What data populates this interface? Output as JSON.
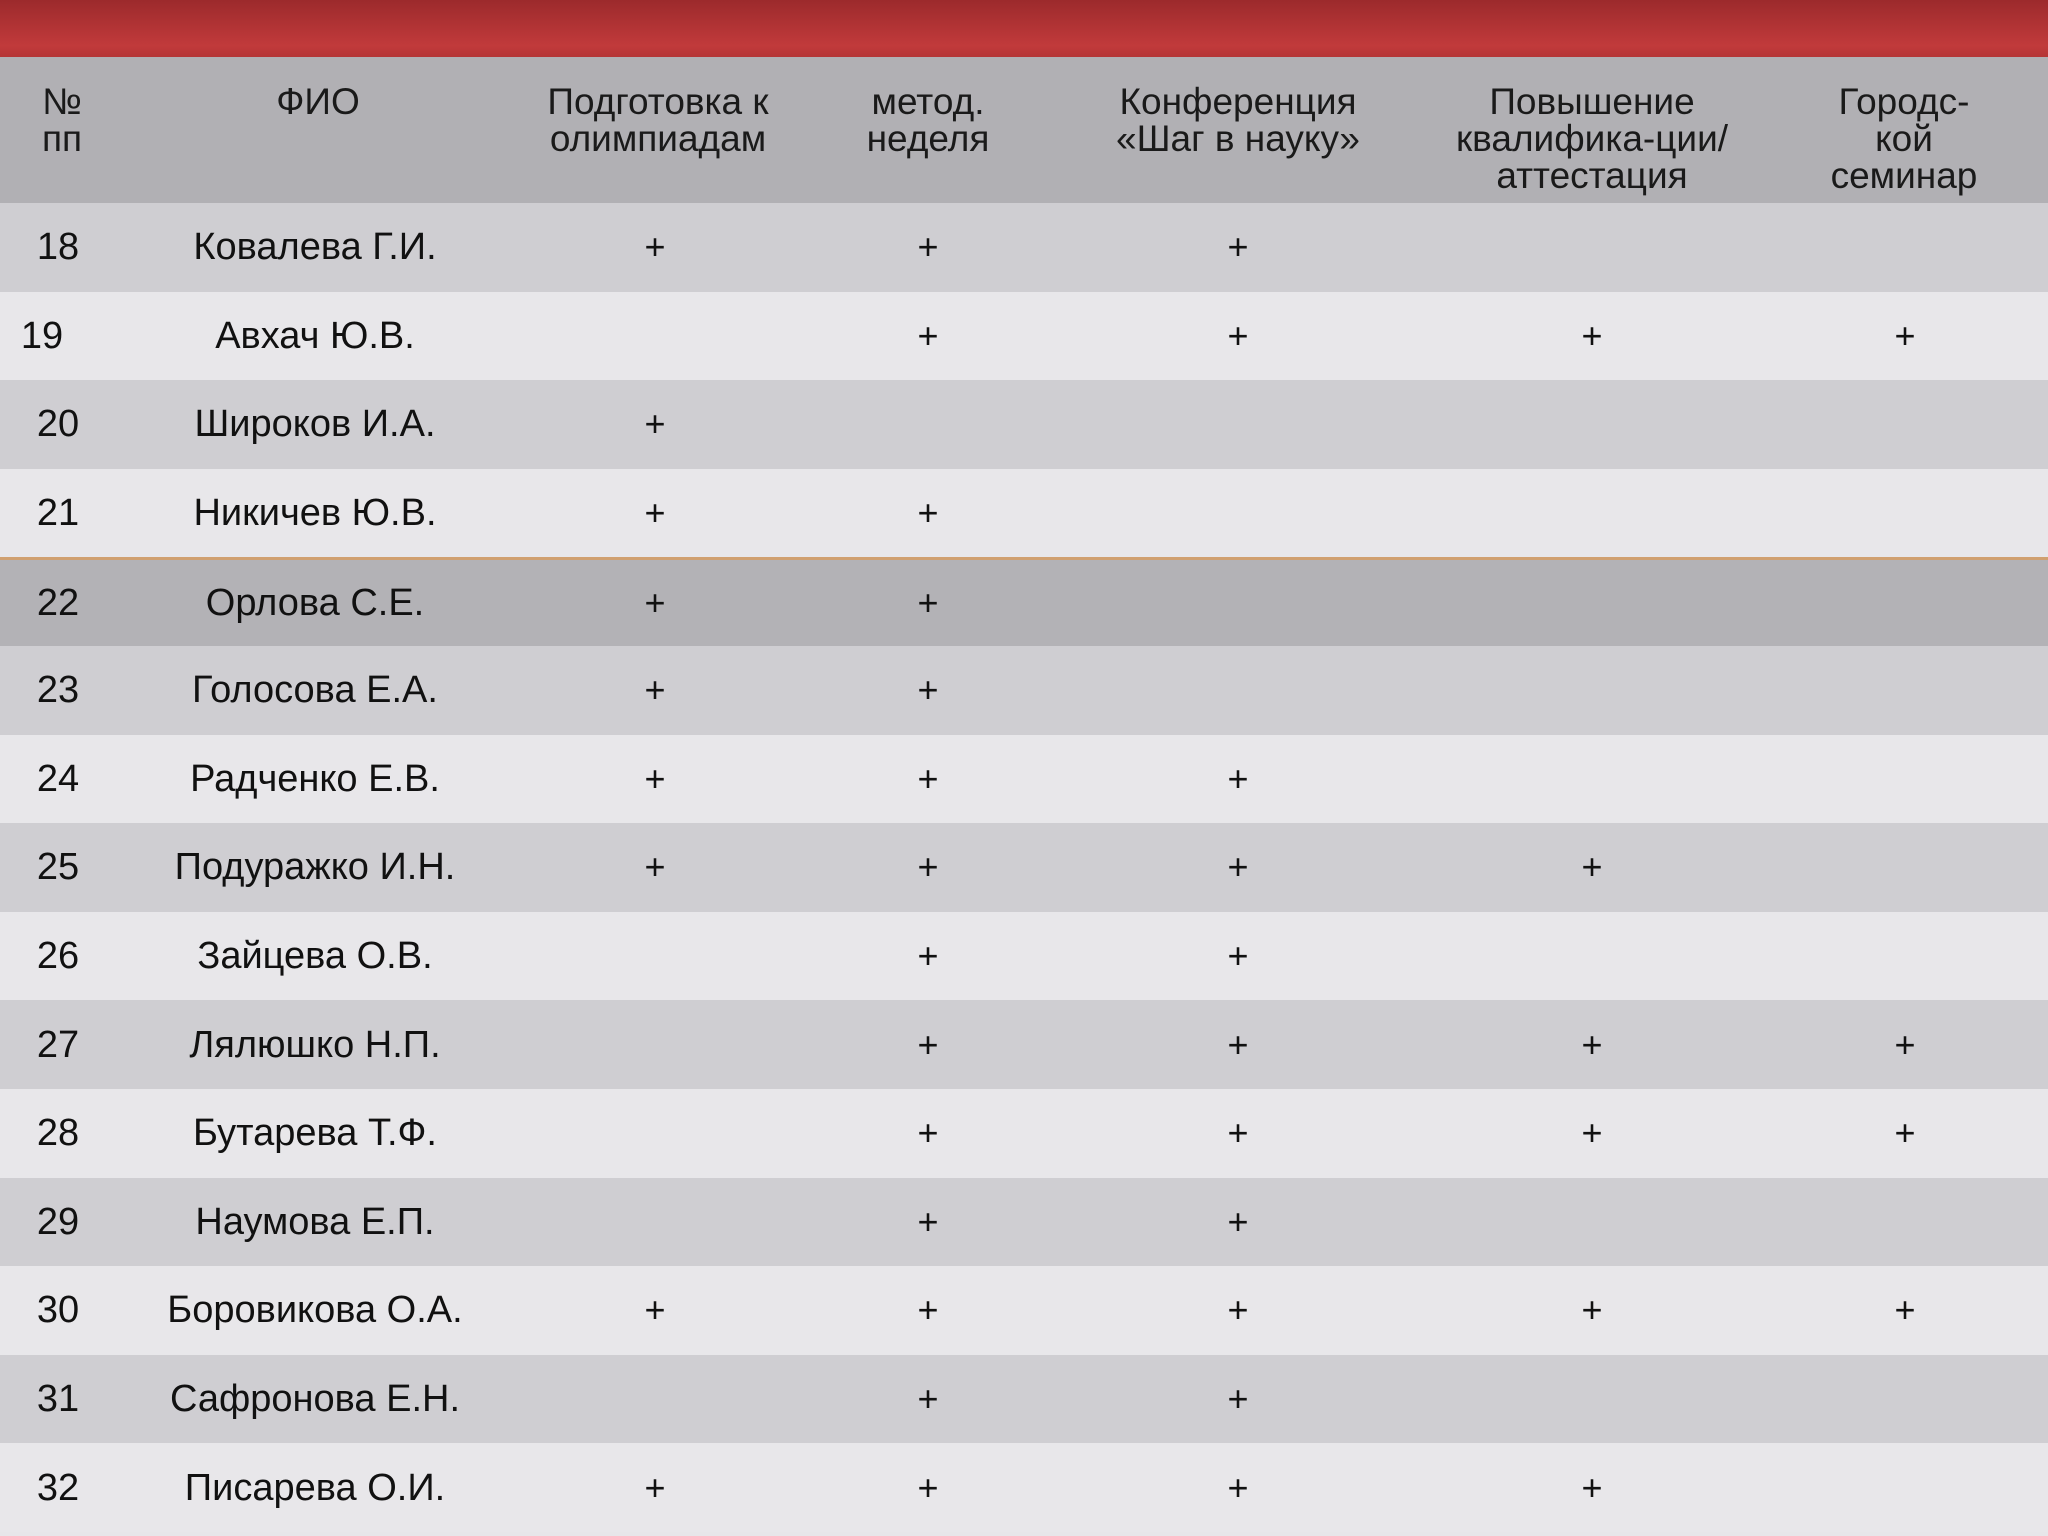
{
  "header": {
    "num": "№\nпп",
    "fio": "ФИО",
    "olymp": "Подготовка к\nолимпиадам",
    "metod": "метод.\nнеделя",
    "conf": "Конференция\n«Шаг в науку»",
    "qual": "Повышение\nквалифика-ции/\nаттестация",
    "city": "Городс-кой\nсеминар"
  },
  "rows": [
    {
      "n": "18",
      "name": "Ковалева Г.И.",
      "olymp": "+",
      "metod": "+",
      "conf": "+",
      "qual": "",
      "city": ""
    },
    {
      "n": "19",
      "name": "Авхач Ю.В.",
      "olymp": "",
      "metod": "+",
      "conf": "+",
      "qual": "+",
      "city": "+"
    },
    {
      "n": "20",
      "name": "Широков И.А.",
      "olymp": "+",
      "metod": "",
      "conf": "",
      "qual": "",
      "city": ""
    },
    {
      "n": "21",
      "name": "Никичев Ю.В.",
      "olymp": "+",
      "metod": "+",
      "conf": "",
      "qual": "",
      "city": ""
    },
    {
      "n": "22",
      "name": "Орлова С.Е.",
      "olymp": "+",
      "metod": "+",
      "conf": "",
      "qual": "",
      "city": ""
    },
    {
      "n": "23",
      "name": "Голосова Е.А.",
      "olymp": "+",
      "metod": "+",
      "conf": "",
      "qual": "",
      "city": ""
    },
    {
      "n": "24",
      "name": "Радченко Е.В.",
      "olymp": "+",
      "metod": "+",
      "conf": "+",
      "qual": "",
      "city": ""
    },
    {
      "n": "25",
      "name": "Подуражко И.Н.",
      "olymp": "+",
      "metod": "+",
      "conf": "+",
      "qual": "+",
      "city": ""
    },
    {
      "n": "26",
      "name": "Зайцева О.В.",
      "olymp": "",
      "metod": "+",
      "conf": "+",
      "qual": "",
      "city": ""
    },
    {
      "n": "27",
      "name": "Лялюшко Н.П.",
      "olymp": "",
      "metod": "+",
      "conf": "+",
      "qual": "+",
      "city": "+"
    },
    {
      "n": "28",
      "name": "Бутарева Т.Ф.",
      "olymp": "",
      "metod": "+",
      "conf": "+",
      "qual": "+",
      "city": "+"
    },
    {
      "n": "29",
      "name": "Наумова Е.П.",
      "olymp": "",
      "metod": "+",
      "conf": "+",
      "qual": "",
      "city": ""
    },
    {
      "n": "30",
      "name": "Боровикова О.А.",
      "olymp": "+",
      "metod": "+",
      "conf": "+",
      "qual": "+",
      "city": "+"
    },
    {
      "n": "31",
      "name": "Сафронова Е.Н.",
      "olymp": "",
      "metod": "+",
      "conf": "+",
      "qual": "",
      "city": ""
    },
    {
      "n": "32",
      "name": "Писарева О.И.",
      "olymp": "+",
      "metod": "+",
      "conf": "+",
      "qual": "+",
      "city": ""
    }
  ]
}
